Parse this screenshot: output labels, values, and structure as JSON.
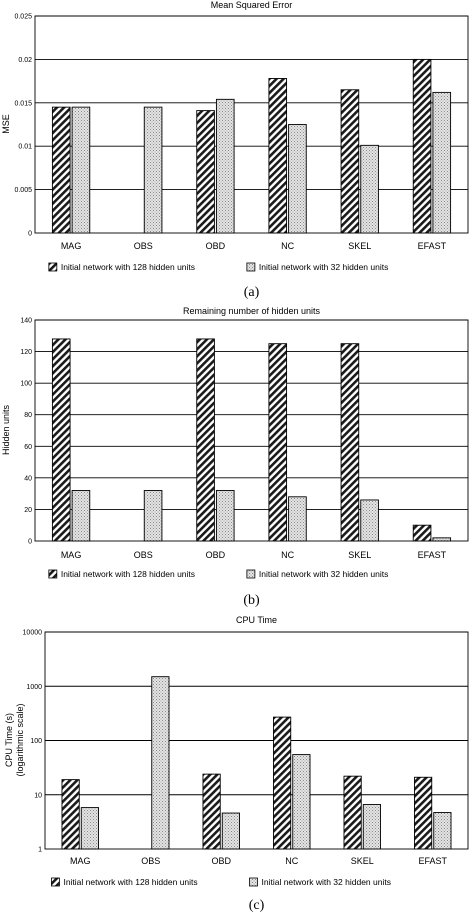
{
  "chart_data": [
    {
      "type": "bar",
      "title": "Mean Squared Error",
      "xlabel": "",
      "ylabel": "MSE",
      "ylim": [
        0,
        0.025
      ],
      "yticks": [
        "0",
        "0.005",
        "0.01",
        "0.015",
        "0.02",
        "0.025"
      ],
      "yscale": "linear",
      "grid": true,
      "legend_position": "bottom",
      "caption": "(a)",
      "categories": [
        "MAG",
        "OBS",
        "OBD",
        "NC",
        "SKEL",
        "EFAST"
      ],
      "series": [
        {
          "name": "Initial network with 128 hidden units",
          "values": [
            0.0145,
            null,
            0.0141,
            0.0178,
            0.0165,
            0.02
          ]
        },
        {
          "name": "Initial network with 32 hidden units",
          "values": [
            0.0145,
            0.0145,
            0.0154,
            0.0125,
            0.0101,
            0.0162
          ]
        }
      ]
    },
    {
      "type": "bar",
      "title": "Remaining number of hidden units",
      "xlabel": "",
      "ylabel": "Hidden units",
      "ylim": [
        0,
        140
      ],
      "yticks": [
        "0",
        "20",
        "40",
        "60",
        "80",
        "100",
        "120",
        "140"
      ],
      "yscale": "linear",
      "grid": true,
      "legend_position": "bottom",
      "caption": "(b)",
      "categories": [
        "MAG",
        "OBS",
        "OBD",
        "NC",
        "SKEL",
        "EFAST"
      ],
      "series": [
        {
          "name": "Initial network with 128 hidden units",
          "values": [
            128,
            null,
            128,
            125,
            125,
            10
          ]
        },
        {
          "name": "Initial network with 32 hidden units",
          "values": [
            32,
            32,
            32,
            28,
            26,
            2
          ]
        }
      ]
    },
    {
      "type": "bar",
      "title": "CPU Time",
      "xlabel": "",
      "ylabel": "CPU Time (s)",
      "ylabel2": "(logarithmic scale)",
      "ylim": [
        1,
        10000
      ],
      "yticks": [
        "1",
        "10",
        "100",
        "1000",
        "10000"
      ],
      "yscale": "log",
      "grid": true,
      "legend_position": "bottom",
      "caption": "(c)",
      "categories": [
        "MAG",
        "OBS",
        "OBD",
        "NC",
        "SKEL",
        "EFAST"
      ],
      "series": [
        {
          "name": "Initial network with 128 hidden units",
          "values": [
            19,
            null,
            24,
            270,
            22,
            21
          ]
        },
        {
          "name": "Initial network with 32  hidden units",
          "values": [
            5.8,
            1500,
            4.6,
            55,
            6.6,
            4.7
          ]
        }
      ]
    }
  ],
  "colors": {
    "background": "#ffffff",
    "series_128_fill": "#2b2b2b",
    "series_32_fill": "#cfcfcf",
    "gridline": "#000000",
    "axis": "#000000"
  }
}
